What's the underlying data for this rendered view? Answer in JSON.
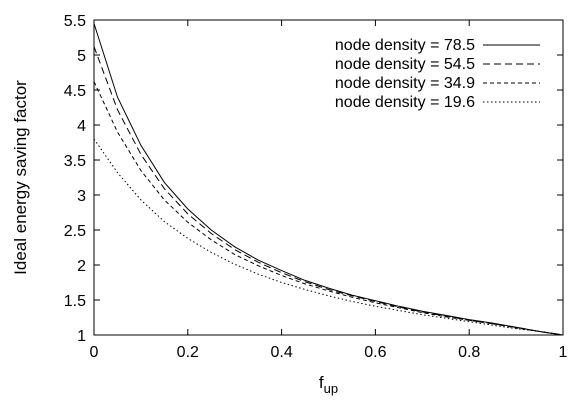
{
  "chart_data": {
    "type": "line",
    "xlabel": "f",
    "xlabel_subscript": "up",
    "ylabel": "Ideal energy saving factor",
    "xlim": [
      0,
      1
    ],
    "ylim": [
      1,
      5.5
    ],
    "xticks": [
      0,
      0.2,
      0.4,
      0.6,
      0.8,
      1
    ],
    "xtick_labels": [
      "0",
      "0.2",
      "0.4",
      "0.6",
      "0.8",
      "1"
    ],
    "yticks": [
      1,
      1.5,
      2,
      2.5,
      3,
      3.5,
      4,
      4.5,
      5,
      5.5
    ],
    "ytick_labels": [
      "1",
      "1.5",
      "2",
      "2.5",
      "3",
      "3.5",
      "4",
      "4.5",
      "5",
      "5.5"
    ],
    "grid": false,
    "legend_position": "top-right",
    "x": [
      0,
      0.05,
      0.1,
      0.15,
      0.2,
      0.25,
      0.3,
      0.35,
      0.4,
      0.45,
      0.5,
      0.55,
      0.6,
      0.65,
      0.7,
      0.75,
      0.8,
      0.85,
      0.9,
      0.95,
      1
    ],
    "series": [
      {
        "name": "node density = 78.5",
        "line_style": "solid",
        "values": [
          5.45,
          4.4,
          3.71,
          3.18,
          2.8,
          2.5,
          2.26,
          2.07,
          1.92,
          1.78,
          1.67,
          1.57,
          1.49,
          1.41,
          1.34,
          1.28,
          1.22,
          1.17,
          1.11,
          1.05,
          1.0
        ]
      },
      {
        "name": "node density = 54.5",
        "line_style": "dashed",
        "values": [
          5.12,
          4.22,
          3.58,
          3.09,
          2.73,
          2.45,
          2.22,
          2.04,
          1.89,
          1.76,
          1.65,
          1.56,
          1.48,
          1.4,
          1.33,
          1.27,
          1.21,
          1.16,
          1.11,
          1.05,
          1.0
        ]
      },
      {
        "name": "node density = 34.9",
        "line_style": "short-dashed",
        "values": [
          4.62,
          3.9,
          3.35,
          2.93,
          2.61,
          2.36,
          2.15,
          1.99,
          1.85,
          1.73,
          1.63,
          1.54,
          1.46,
          1.39,
          1.32,
          1.26,
          1.21,
          1.16,
          1.1,
          1.05,
          1.0
        ]
      },
      {
        "name": "node density = 19.6",
        "line_style": "dotted",
        "values": [
          3.8,
          3.32,
          2.93,
          2.62,
          2.38,
          2.18,
          2.01,
          1.87,
          1.75,
          1.65,
          1.56,
          1.48,
          1.41,
          1.35,
          1.29,
          1.24,
          1.19,
          1.14,
          1.09,
          1.05,
          1.0
        ]
      }
    ]
  }
}
